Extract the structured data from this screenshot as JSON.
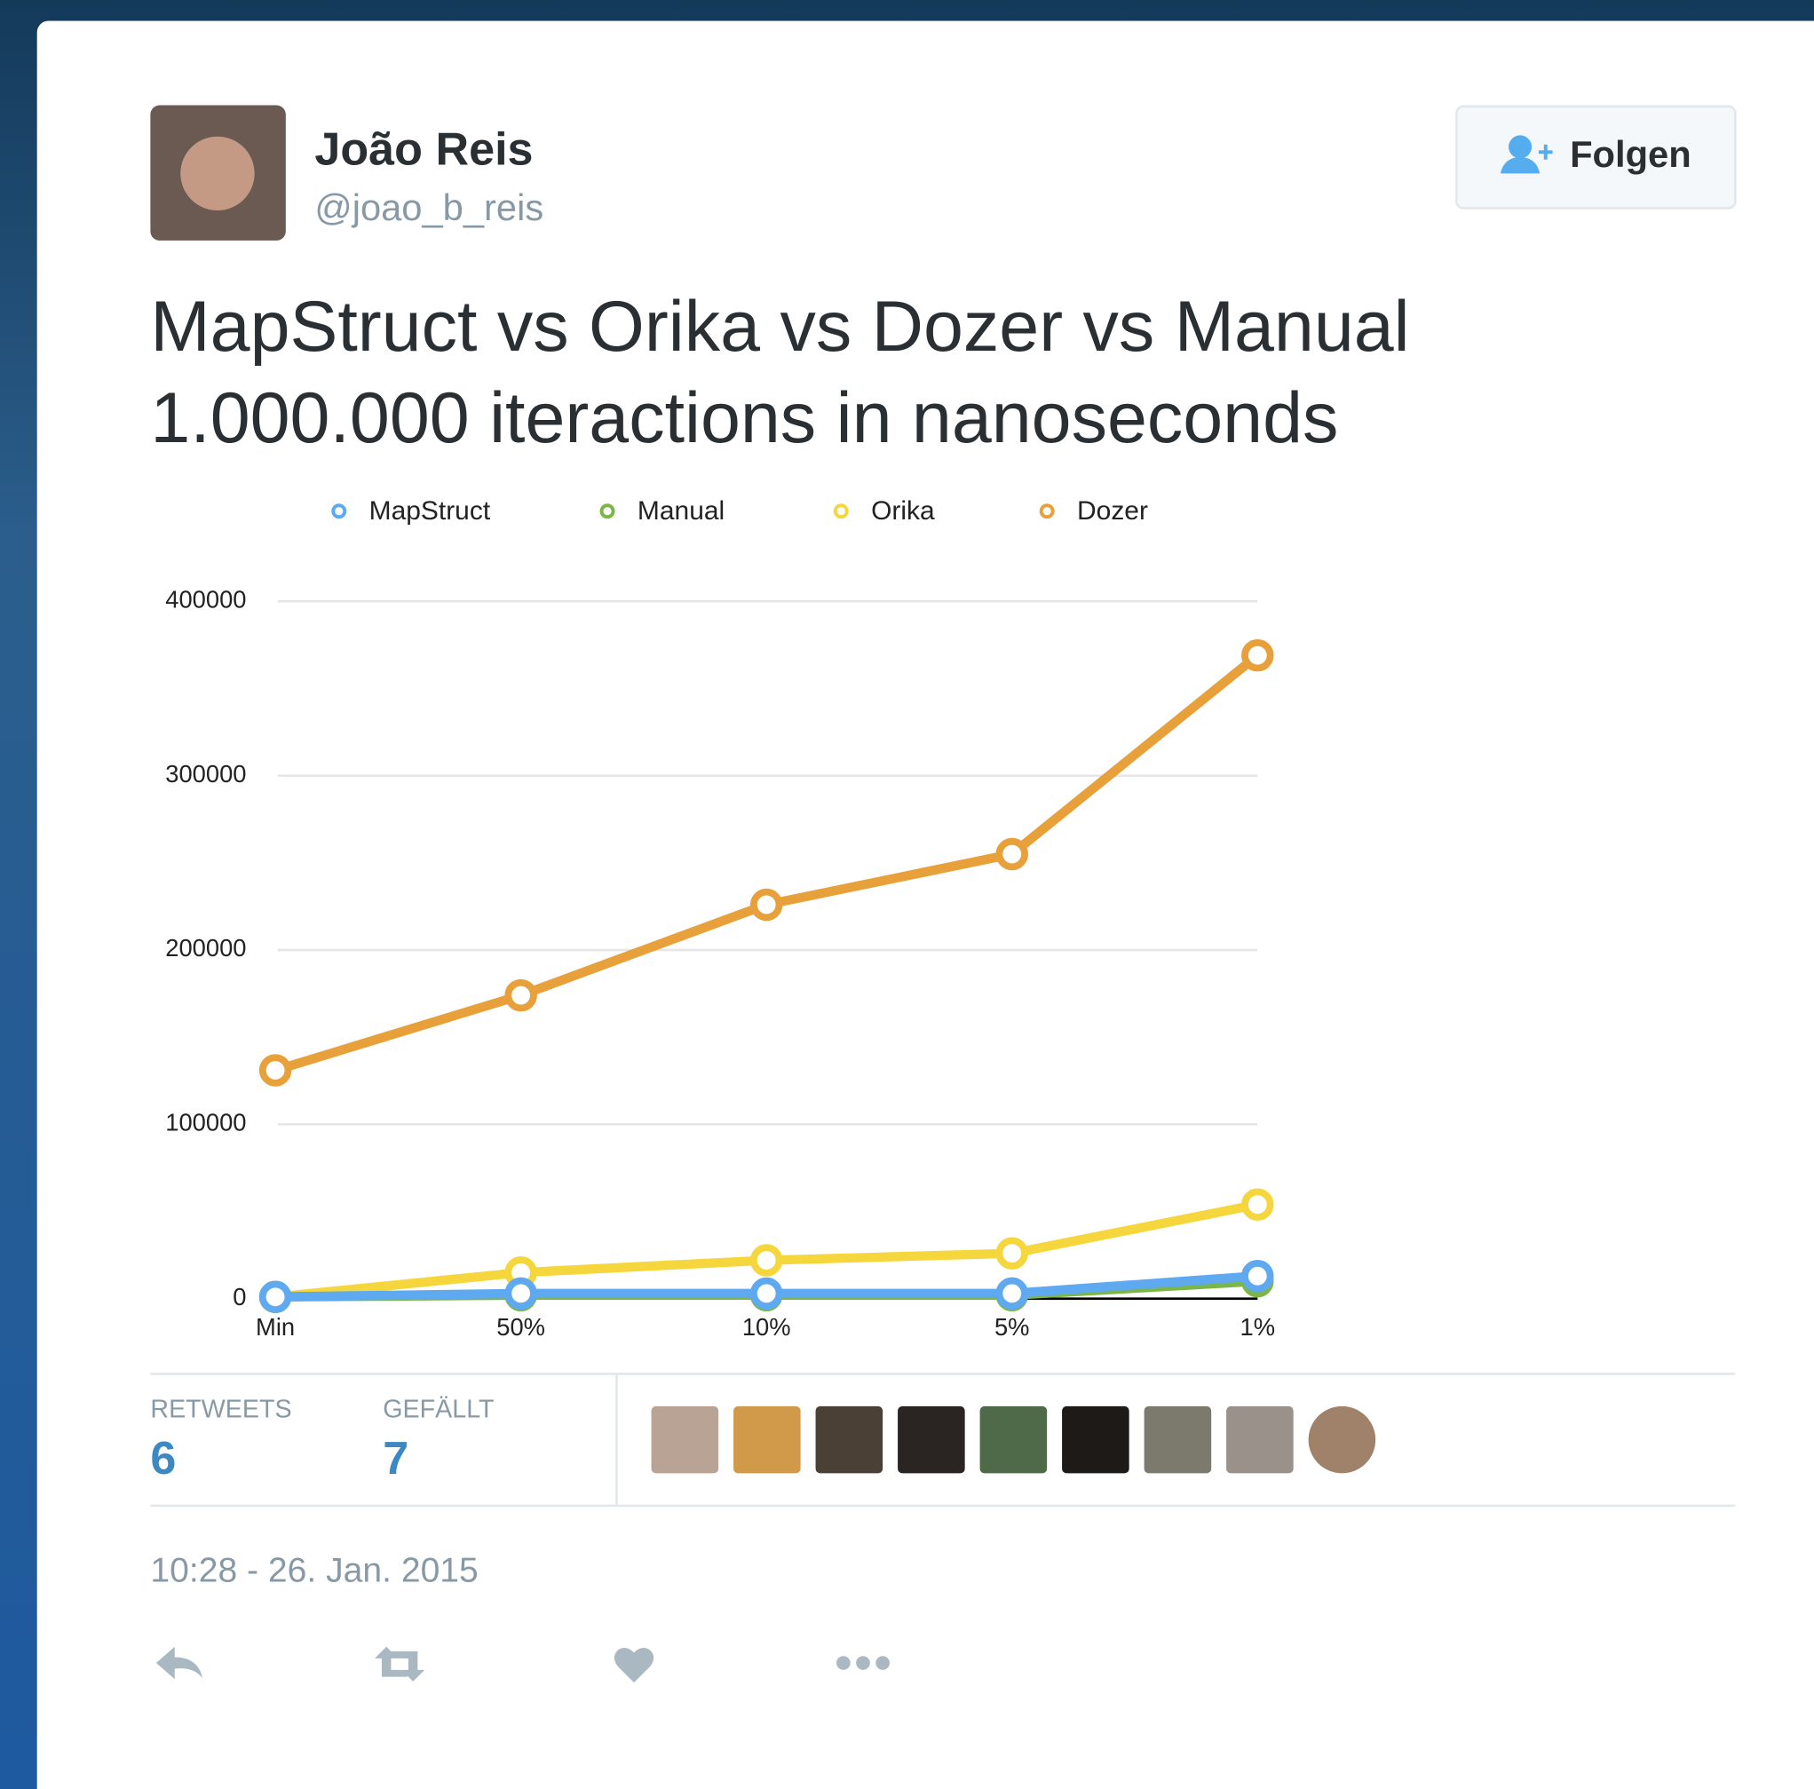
{
  "user": {
    "name": "João Reis",
    "handle": "@joao_b_reis",
    "follow_button": "Folgen"
  },
  "tweet": {
    "lines": [
      "MapStruct vs Orika vs Dozer vs Manual",
      "1.000.000 iteractions in nanoseconds"
    ]
  },
  "chart_data": {
    "type": "line",
    "categories": [
      "Min",
      "50%",
      "10%",
      "5%",
      "1%"
    ],
    "series": [
      {
        "name": "MapStruct",
        "color": "#5ea9f0",
        "values": [
          1000,
          3000,
          3000,
          3000,
          13000
        ]
      },
      {
        "name": "Manual",
        "color": "#7ab648",
        "values": [
          1000,
          2000,
          2000,
          2000,
          10000
        ]
      },
      {
        "name": "Orika",
        "color": "#f5d63d",
        "values": [
          1000,
          15000,
          22000,
          26000,
          54000
        ]
      },
      {
        "name": "Dozer",
        "color": "#e8a03a",
        "values": [
          131000,
          174000,
          226000,
          255000,
          369000
        ]
      }
    ],
    "ylim": [
      0,
      400000
    ],
    "yticks": [
      0,
      100000,
      200000,
      300000,
      400000
    ],
    "grid": true,
    "legend": "top"
  },
  "stats": {
    "retweets": {
      "label": "RETWEETS",
      "value": "6"
    },
    "likes": {
      "label": "GEFÄLLT",
      "value": "7"
    }
  },
  "timestamp": "10:28 - 26. Jan. 2015"
}
